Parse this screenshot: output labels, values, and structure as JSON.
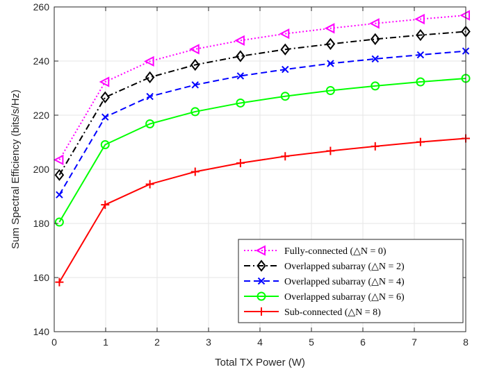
{
  "chart_data": {
    "type": "line",
    "xlabel": "Total TX Power (W)",
    "ylabel": "Sum Spectral Efficiency (bits/s/Hz)",
    "xlim": [
      0,
      8
    ],
    "ylim": [
      140,
      260
    ],
    "xticks": [
      "0",
      "1",
      "2",
      "3",
      "4",
      "5",
      "6",
      "7",
      "8"
    ],
    "yticks": [
      "140",
      "160",
      "180",
      "200",
      "220",
      "240",
      "260"
    ],
    "grid": true,
    "legend_position": "bottom-right",
    "x": [
      0.1,
      0.99,
      1.86,
      2.74,
      3.62,
      4.49,
      5.37,
      6.24,
      7.12,
      8.0
    ],
    "series": [
      {
        "name": "Fully-connected (△N = 0)",
        "color": "#ff00ff",
        "line_style": "dotted",
        "marker": "triangle-left",
        "values": [
          203.5,
          232.3,
          239.9,
          244.4,
          247.6,
          250.1,
          252.1,
          253.9,
          255.5,
          256.9
        ]
      },
      {
        "name": "Overlapped subarray (△N = 2)",
        "color": "#000000",
        "line_style": "dashdot",
        "marker": "diamond",
        "values": [
          197.9,
          226.6,
          234.0,
          238.6,
          241.8,
          244.3,
          246.3,
          248.1,
          249.6,
          250.9
        ]
      },
      {
        "name": "Overlapped subarray (△N = 4)",
        "color": "#0000ff",
        "line_style": "dashed",
        "marker": "x",
        "values": [
          190.6,
          219.3,
          226.9,
          231.2,
          234.5,
          236.9,
          239.1,
          240.8,
          242.3,
          243.7
        ]
      },
      {
        "name": "Overlapped subarray (△N = 6)",
        "color": "#00ff00",
        "line_style": "solid",
        "marker": "circle",
        "values": [
          180.5,
          209.1,
          216.8,
          221.3,
          224.5,
          227.0,
          229.1,
          230.8,
          232.3,
          233.6
        ]
      },
      {
        "name": "Sub-connected (△N = 8)",
        "color": "#ff0000",
        "line_style": "solid",
        "marker": "plus",
        "values": [
          158.3,
          186.9,
          194.5,
          199.1,
          202.3,
          204.8,
          206.8,
          208.5,
          210.1,
          211.4
        ]
      }
    ]
  }
}
